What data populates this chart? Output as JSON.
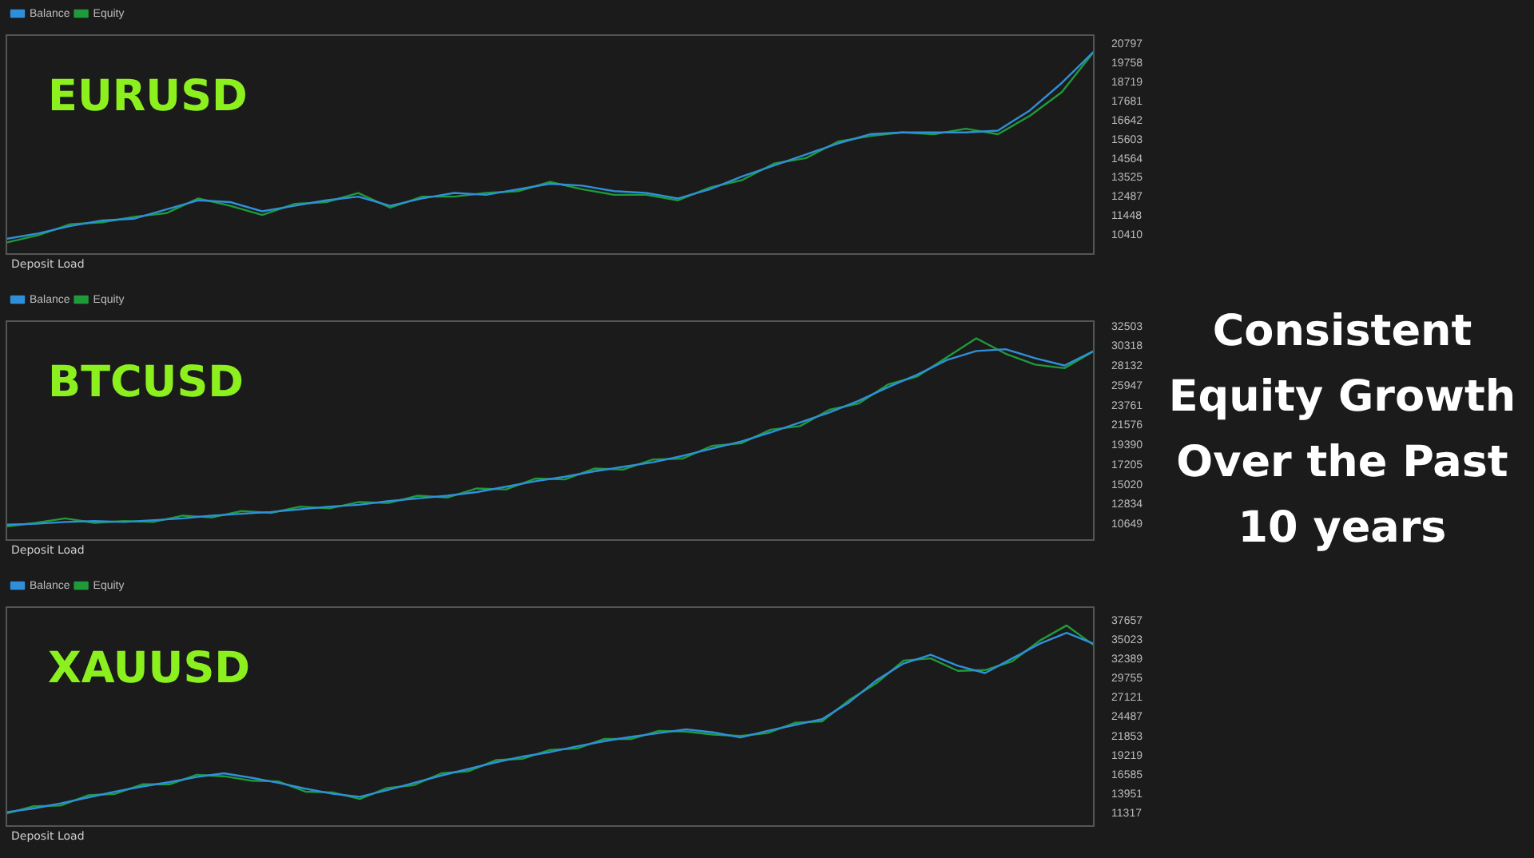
{
  "chart_data": [
    {
      "type": "line",
      "title": "EURUSD",
      "categories": [
        null,
        null,
        null,
        null,
        null,
        null,
        null,
        null,
        null,
        null,
        null,
        null,
        null,
        null,
        null,
        null,
        null,
        null,
        null,
        null,
        null,
        null,
        null,
        null,
        null,
        null,
        null,
        null,
        null,
        null,
        null,
        null,
        null,
        null,
        null
      ],
      "series": [
        {
          "name": "Balance",
          "color": "#2f8fd8",
          "values": [
            10200,
            10500,
            10900,
            11200,
            11300,
            11800,
            12300,
            12200,
            11700,
            12000,
            12300,
            12500,
            12000,
            12400,
            12700,
            12600,
            12900,
            13200,
            13100,
            12800,
            12700,
            12400,
            12900,
            13600,
            14200,
            14800,
            15400,
            15900,
            16000,
            16000,
            16000,
            16100,
            17200,
            18700,
            20400
          ]
        },
        {
          "name": "Equity",
          "color": "#1f9a3a",
          "values": [
            10000,
            10400,
            11000,
            11100,
            11400,
            11600,
            12400,
            12000,
            11500,
            12100,
            12200,
            12700,
            11900,
            12500,
            12500,
            12700,
            12800,
            13300,
            12900,
            12600,
            12600,
            12300,
            13000,
            13400,
            14300,
            14600,
            15500,
            15800,
            16000,
            15900,
            16200,
            15900,
            16900,
            18200,
            20400
          ]
        }
      ],
      "ylim": [
        9371,
        21300
      ],
      "yticks": [
        10410,
        11448,
        12487,
        13525,
        14564,
        15603,
        16642,
        17681,
        18719,
        19758,
        20797
      ],
      "grid": false,
      "legend": "top left",
      "tick_labels": "y",
      "annotations": [
        "Deposit Load"
      ]
    },
    {
      "type": "line",
      "title": "BTCUSD",
      "categories": [
        null,
        null,
        null,
        null,
        null,
        null,
        null,
        null,
        null,
        null,
        null,
        null,
        null,
        null,
        null,
        null,
        null,
        null,
        null,
        null,
        null,
        null,
        null,
        null,
        null,
        null,
        null,
        null,
        null,
        null,
        null,
        null,
        null,
        null,
        null,
        null,
        null,
        null
      ],
      "series": [
        {
          "name": "Balance",
          "color": "#2f8fd8",
          "values": [
            10600,
            10700,
            10900,
            11000,
            10900,
            11100,
            11300,
            11600,
            11800,
            12000,
            12300,
            12600,
            12800,
            13200,
            13500,
            13800,
            14200,
            14800,
            15400,
            15900,
            16500,
            17000,
            17500,
            18200,
            19000,
            19800,
            20800,
            21900,
            23000,
            24300,
            25800,
            27200,
            28800,
            29800,
            30000,
            29000,
            28200,
            29800
          ]
        },
        {
          "name": "Equity",
          "color": "#1f9a3a",
          "values": [
            10400,
            10800,
            11300,
            10800,
            11000,
            10900,
            11600,
            11400,
            12100,
            11900,
            12600,
            12400,
            13100,
            13000,
            13800,
            13600,
            14600,
            14500,
            15700,
            15600,
            16800,
            16700,
            17800,
            17900,
            19300,
            19600,
            21100,
            21500,
            23300,
            24000,
            26100,
            27000,
            29100,
            31200,
            29500,
            28300,
            27900,
            29800
          ]
        }
      ],
      "ylim": [
        8900,
        33100
      ],
      "yticks": [
        10649,
        12834,
        15020,
        17205,
        19390,
        21576,
        23761,
        25947,
        28132,
        30318,
        32503
      ],
      "grid": false,
      "legend": "top left",
      "tick_labels": "y",
      "annotations": [
        "Deposit Load"
      ]
    },
    {
      "type": "line",
      "title": "XAUUSD",
      "categories": [
        null,
        null,
        null,
        null,
        null,
        null,
        null,
        null,
        null,
        null,
        null,
        null,
        null,
        null,
        null,
        null,
        null,
        null,
        null,
        null,
        null,
        null,
        null,
        null,
        null,
        null,
        null,
        null,
        null,
        null,
        null,
        null,
        null,
        null,
        null,
        null,
        null,
        null,
        null,
        null,
        null
      ],
      "series": [
        {
          "name": "Balance",
          "color": "#2f8fd8",
          "values": [
            11500,
            12000,
            12700,
            13500,
            14300,
            15000,
            15600,
            16300,
            16800,
            16200,
            15500,
            14700,
            14000,
            13600,
            14500,
            15500,
            16500,
            17400,
            18300,
            19100,
            19700,
            20500,
            21200,
            21800,
            22300,
            22800,
            22400,
            21700,
            22600,
            23400,
            24200,
            26500,
            29500,
            31800,
            33000,
            31500,
            30500,
            32500,
            34500,
            36000,
            34500
          ]
        },
        {
          "name": "Equity",
          "color": "#1f9a3a",
          "values": [
            11300,
            12300,
            12400,
            13800,
            14000,
            15300,
            15300,
            16600,
            16400,
            15800,
            15700,
            14300,
            14200,
            13300,
            14800,
            15200,
            16800,
            17100,
            18600,
            18800,
            20000,
            20200,
            21500,
            21500,
            22600,
            22500,
            22100,
            21900,
            22300,
            23700,
            23900,
            26800,
            29100,
            32200,
            32500,
            30800,
            30900,
            32100,
            34900,
            37000,
            34300
          ]
        }
      ],
      "ylim": [
        9600,
        39500
      ],
      "yticks": [
        11317,
        13951,
        16585,
        19219,
        21853,
        24487,
        27121,
        29755,
        32389,
        35023,
        37657
      ],
      "grid": false,
      "legend": "top left",
      "tick_labels": "y",
      "annotations": [
        "Deposit Load"
      ]
    },
    {
      "type": "other",
      "title": "Consistent Equity Growth Over the Past 10 years"
    }
  ]
}
